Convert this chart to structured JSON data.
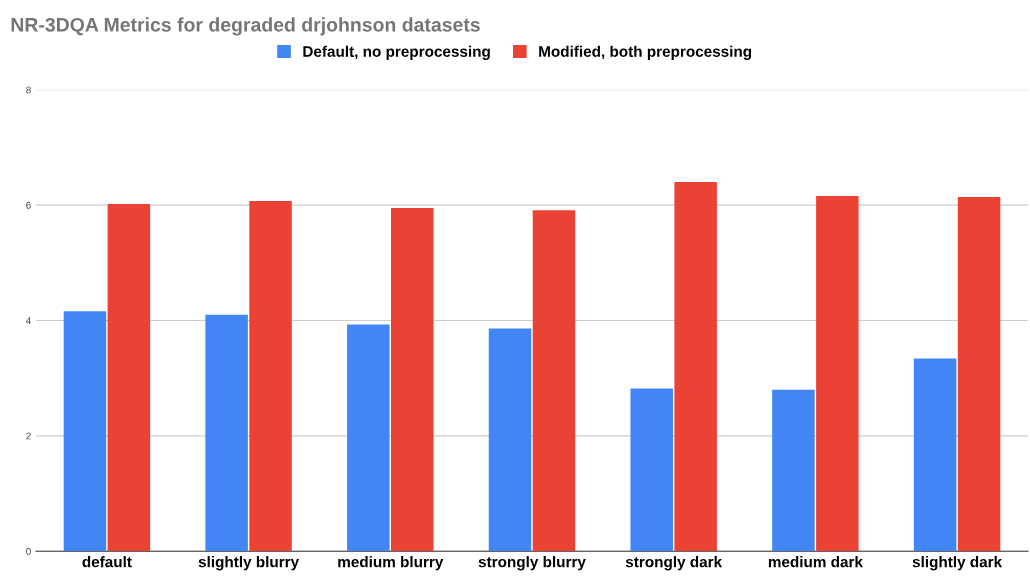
{
  "chart_data": {
    "type": "bar",
    "title": "NR-3DQA Metrics for degraded drjohnson datasets",
    "categories": [
      "default",
      "slightly blurry",
      "medium blurry",
      "strongly blurry",
      "strongly dark",
      "medium dark",
      "slightly dark"
    ],
    "series": [
      {
        "name": "Default, no preprocessing",
        "color": "#4285f4",
        "values": [
          4.16,
          4.1,
          3.93,
          3.86,
          2.82,
          2.8,
          3.34
        ]
      },
      {
        "name": "Modified, both preprocessing",
        "color": "#ea4335",
        "values": [
          6.02,
          6.07,
          5.95,
          5.91,
          6.4,
          6.16,
          6.14
        ]
      }
    ],
    "ylim": [
      0,
      8
    ],
    "yticks": [
      0,
      2,
      4,
      6,
      8
    ],
    "grid": "y",
    "legend": "top"
  }
}
